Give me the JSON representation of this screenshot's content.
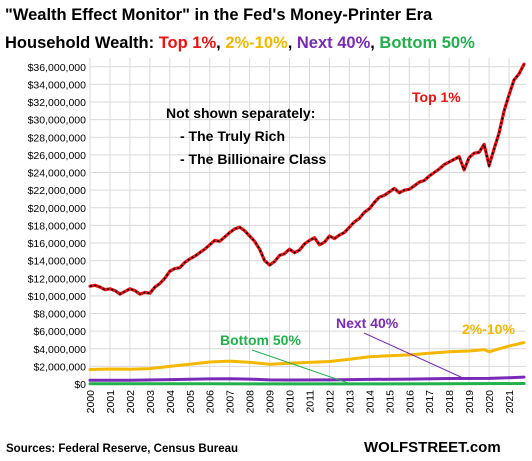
{
  "chart_data": {
    "type": "line",
    "title_line1": "\"Wealth Effect Monitor\" in the Fed's Money-Printer Era",
    "title_line2_prefix": "Household Wealth: ",
    "title_segments": [
      {
        "text": "Top 1%",
        "color": "#ee1111"
      },
      {
        "text": ", ",
        "color": "#000000"
      },
      {
        "text": "2%-10%",
        "color": "#f5b800"
      },
      {
        "text": ", ",
        "color": "#000000"
      },
      {
        "text": "Next 40%",
        "color": "#7a2ab8"
      },
      {
        "text": ", ",
        "color": "#000000"
      },
      {
        "text": "Bottom 50%",
        "color": "#21b14b"
      }
    ],
    "x_ticks": [
      "2000",
      "2001",
      "2002",
      "2003",
      "2004",
      "2005",
      "2006",
      "2007",
      "2008",
      "2009",
      "2010",
      "2011",
      "2012",
      "2013",
      "2014",
      "2015",
      "2016",
      "2017",
      "2018",
      "2019",
      "2020",
      "2021"
    ],
    "xlim": [
      2000,
      2021.85
    ],
    "y_ticks": [
      "$0",
      "$2,000,000",
      "$4,000,000",
      "$6,000,000",
      "$8,000,000",
      "$10,000,000",
      "$12,000,000",
      "$14,000,000",
      "$16,000,000",
      "$18,000,000",
      "$20,000,000",
      "$22,000,000",
      "$24,000,000",
      "$26,000,000",
      "$28,000,000",
      "$30,000,000",
      "$32,000,000",
      "$34,000,000",
      "$36,000,000"
    ],
    "ylim": [
      0,
      37000000
    ],
    "grid": true,
    "series": [
      {
        "name": "Top 1%",
        "color": "#ee1111",
        "points": [
          [
            2000.0,
            11100000
          ],
          [
            2000.25,
            11200000
          ],
          [
            2000.5,
            11000000
          ],
          [
            2000.75,
            10700000
          ],
          [
            2001.0,
            10800000
          ],
          [
            2001.25,
            10600000
          ],
          [
            2001.5,
            10200000
          ],
          [
            2001.75,
            10500000
          ],
          [
            2002.0,
            10800000
          ],
          [
            2002.25,
            10600000
          ],
          [
            2002.5,
            10200000
          ],
          [
            2002.75,
            10400000
          ],
          [
            2003.0,
            10300000
          ],
          [
            2003.25,
            11000000
          ],
          [
            2003.5,
            11400000
          ],
          [
            2003.75,
            12000000
          ],
          [
            2004.0,
            12800000
          ],
          [
            2004.25,
            13100000
          ],
          [
            2004.5,
            13200000
          ],
          [
            2004.75,
            13800000
          ],
          [
            2005.0,
            14200000
          ],
          [
            2005.25,
            14500000
          ],
          [
            2005.5,
            14900000
          ],
          [
            2005.75,
            15300000
          ],
          [
            2006.0,
            15800000
          ],
          [
            2006.25,
            16300000
          ],
          [
            2006.5,
            16200000
          ],
          [
            2006.75,
            16700000
          ],
          [
            2007.0,
            17200000
          ],
          [
            2007.25,
            17600000
          ],
          [
            2007.5,
            17800000
          ],
          [
            2007.75,
            17400000
          ],
          [
            2008.0,
            16800000
          ],
          [
            2008.25,
            16200000
          ],
          [
            2008.5,
            15300000
          ],
          [
            2008.75,
            14000000
          ],
          [
            2009.0,
            13500000
          ],
          [
            2009.25,
            13900000
          ],
          [
            2009.5,
            14600000
          ],
          [
            2009.75,
            14800000
          ],
          [
            2010.0,
            15300000
          ],
          [
            2010.25,
            14900000
          ],
          [
            2010.5,
            15200000
          ],
          [
            2010.75,
            15900000
          ],
          [
            2011.0,
            16300000
          ],
          [
            2011.25,
            16600000
          ],
          [
            2011.5,
            15800000
          ],
          [
            2011.75,
            16100000
          ],
          [
            2012.0,
            16800000
          ],
          [
            2012.25,
            16500000
          ],
          [
            2012.5,
            16900000
          ],
          [
            2012.75,
            17200000
          ],
          [
            2013.0,
            17800000
          ],
          [
            2013.25,
            18400000
          ],
          [
            2013.5,
            18800000
          ],
          [
            2013.75,
            19500000
          ],
          [
            2014.0,
            19900000
          ],
          [
            2014.25,
            20600000
          ],
          [
            2014.5,
            21200000
          ],
          [
            2014.75,
            21400000
          ],
          [
            2015.0,
            21800000
          ],
          [
            2015.25,
            22200000
          ],
          [
            2015.5,
            21700000
          ],
          [
            2015.75,
            22000000
          ],
          [
            2016.0,
            22100000
          ],
          [
            2016.25,
            22500000
          ],
          [
            2016.5,
            22900000
          ],
          [
            2016.75,
            23100000
          ],
          [
            2017.0,
            23600000
          ],
          [
            2017.25,
            24000000
          ],
          [
            2017.5,
            24400000
          ],
          [
            2017.75,
            24900000
          ],
          [
            2018.0,
            25200000
          ],
          [
            2018.25,
            25500000
          ],
          [
            2018.5,
            25800000
          ],
          [
            2018.75,
            24300000
          ],
          [
            2019.0,
            25700000
          ],
          [
            2019.25,
            26200000
          ],
          [
            2019.5,
            26300000
          ],
          [
            2019.75,
            27200000
          ],
          [
            2020.0,
            24800000
          ],
          [
            2020.25,
            26700000
          ],
          [
            2020.5,
            28500000
          ],
          [
            2020.75,
            31000000
          ],
          [
            2021.0,
            32800000
          ],
          [
            2021.25,
            34500000
          ],
          [
            2021.5,
            35200000
          ],
          [
            2021.75,
            36300000
          ]
        ]
      },
      {
        "name": "2%-10%",
        "color": "#f5b800",
        "points": [
          [
            2000.0,
            1650000
          ],
          [
            2001.0,
            1700000
          ],
          [
            2002.0,
            1680000
          ],
          [
            2003.0,
            1750000
          ],
          [
            2004.0,
            2000000
          ],
          [
            2005.0,
            2250000
          ],
          [
            2006.0,
            2500000
          ],
          [
            2007.0,
            2600000
          ],
          [
            2008.0,
            2450000
          ],
          [
            2009.0,
            2250000
          ],
          [
            2010.0,
            2350000
          ],
          [
            2011.0,
            2450000
          ],
          [
            2012.0,
            2550000
          ],
          [
            2013.0,
            2800000
          ],
          [
            2014.0,
            3100000
          ],
          [
            2015.0,
            3200000
          ],
          [
            2016.0,
            3300000
          ],
          [
            2017.0,
            3500000
          ],
          [
            2018.0,
            3650000
          ],
          [
            2019.0,
            3750000
          ],
          [
            2019.75,
            3900000
          ],
          [
            2020.0,
            3650000
          ],
          [
            2020.5,
            4000000
          ],
          [
            2021.0,
            4300000
          ],
          [
            2021.75,
            4700000
          ]
        ]
      },
      {
        "name": "Next 40%",
        "color": "#7a2ab8",
        "points": [
          [
            2000.0,
            420000
          ],
          [
            2002.0,
            430000
          ],
          [
            2004.0,
            500000
          ],
          [
            2006.0,
            580000
          ],
          [
            2007.0,
            600000
          ],
          [
            2008.0,
            560000
          ],
          [
            2009.0,
            470000
          ],
          [
            2010.0,
            450000
          ],
          [
            2012.0,
            470000
          ],
          [
            2014.0,
            520000
          ],
          [
            2016.0,
            560000
          ],
          [
            2018.0,
            620000
          ],
          [
            2020.0,
            640000
          ],
          [
            2021.0,
            720000
          ],
          [
            2021.75,
            780000
          ]
        ]
      },
      {
        "name": "Bottom 50%",
        "color": "#21b14b",
        "points": [
          [
            2000.0,
            20000
          ],
          [
            2003.0,
            25000
          ],
          [
            2006.0,
            30000
          ],
          [
            2009.0,
            10000
          ],
          [
            2012.0,
            8000
          ],
          [
            2015.0,
            15000
          ],
          [
            2018.0,
            25000
          ],
          [
            2021.75,
            55000
          ]
        ]
      }
    ],
    "annotations": {
      "top1_label": "Top 1%",
      "not_shown_title": "Not shown separately:",
      "not_shown_item1": "- The Truly Rich",
      "not_shown_item2": "- The Billionaire Class",
      "bottom50_label": "Bottom 50%",
      "next40_label": "Next 40%",
      "p2to10_label": "2%-10%"
    },
    "colors": {
      "grid": "#d9d9d9",
      "top1_marker": "#000000"
    }
  },
  "footer": {
    "sources": "Sources: Federal Reserve, Census Bureau",
    "brand": "WOLFSTREET.com"
  }
}
